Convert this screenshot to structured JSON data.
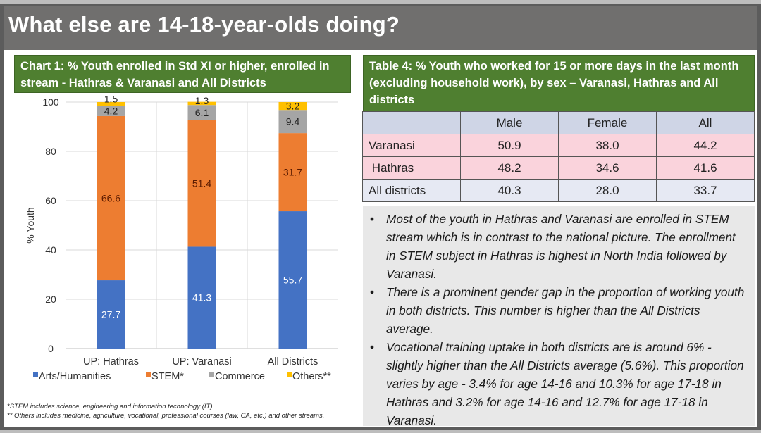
{
  "title": "What else are 14-18-year-olds doing?",
  "chart_header": "Chart 1: % Youth enrolled in Std XI or higher, enrolled in stream - Hathras & Varanasi and All Districts",
  "chart_data": {
    "type": "bar",
    "stacked": true,
    "categories": [
      "UP: Hathras",
      "UP: Varanasi",
      "All Districts"
    ],
    "series": [
      {
        "name": "Arts/Humanities",
        "values": [
          27.7,
          41.3,
          55.7
        ],
        "color": "#4472c4"
      },
      {
        "name": "STEM*",
        "values": [
          66.6,
          51.4,
          31.7
        ],
        "color": "#ed7d31"
      },
      {
        "name": "Commerce",
        "values": [
          4.2,
          6.1,
          9.4
        ],
        "color": "#a5a5a5"
      },
      {
        "name": "Others**",
        "values": [
          1.5,
          1.3,
          3.2
        ],
        "color": "#ffc000"
      }
    ],
    "ylabel": "% Youth",
    "ylim": [
      0,
      100
    ],
    "yticks": [
      0,
      20,
      40,
      60,
      80,
      100
    ],
    "grid": true,
    "legend": "bottom"
  },
  "footnotes": [
    "*STEM includes science, engineering and information technology (IT)",
    "** Others includes medicine, agriculture, vocational, professional courses (law, CA, etc.) and other streams."
  ],
  "table": {
    "header": "Table 4: % Youth who worked for 15 or more days in the last month (excluding household work), by sex – Varanasi, Hathras and All districts",
    "columns": [
      "",
      "Male",
      "Female",
      "All"
    ],
    "rows": [
      [
        "Varanasi",
        "50.9",
        "38.0",
        "44.2"
      ],
      [
        " Hathras",
        "48.2",
        "34.6",
        "41.6"
      ],
      [
        "All districts",
        "40.3",
        "28.0",
        "33.7"
      ]
    ]
  },
  "notes": [
    "Most of the youth in Hathras and Varanasi are enrolled in STEM stream which is in contrast to the national picture. The enrollment in STEM subject in Hathras is highest in North India followed by Varanasi.",
    "There is a prominent gender gap in the proportion of working youth in both districts. This number is higher than the All Districts average.",
    "Vocational training uptake in both districts are is around 6% - slightly higher than the All Districts average (5.6%). This proportion varies by age - 3.4% for age 14-16 and 10.3% for age 17-18 in Hathras and 3.2% for age 14-16 and 12.7% for age 17-18 in Varanasi."
  ]
}
